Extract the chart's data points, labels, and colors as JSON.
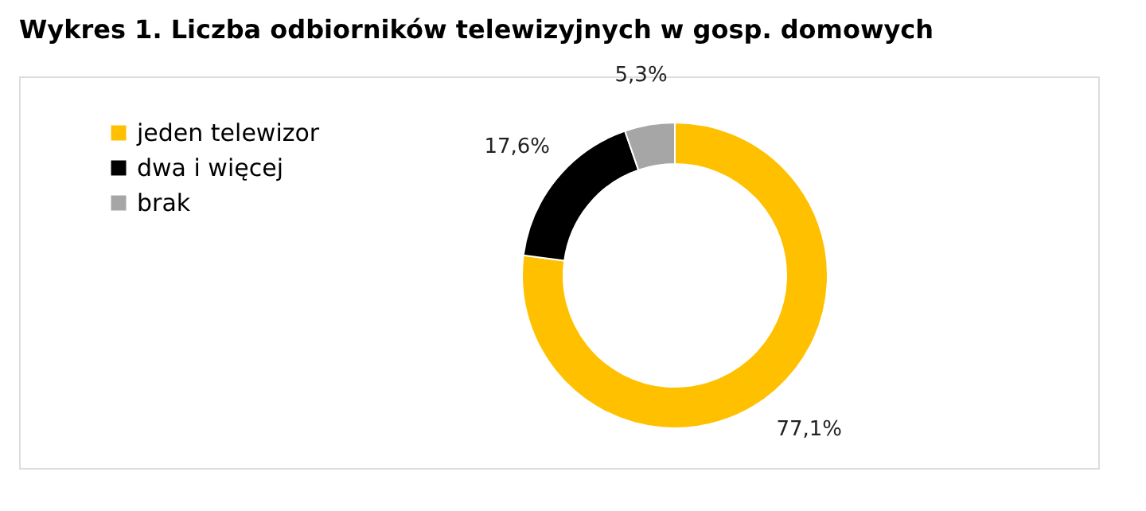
{
  "chart_data": {
    "type": "donut",
    "title": "Wykres 1. Liczba odbiorników telewizyjnych w gosp. domowych",
    "categories": [
      "jeden telewizor",
      "dwa i więcej",
      "brak"
    ],
    "values": [
      77.1,
      17.6,
      5.3
    ],
    "colors": [
      "#ffc000",
      "#000000",
      "#a6a6a6"
    ],
    "value_labels": [
      "77,1%",
      "17,6%",
      "5,3%"
    ],
    "legend": "top left"
  }
}
